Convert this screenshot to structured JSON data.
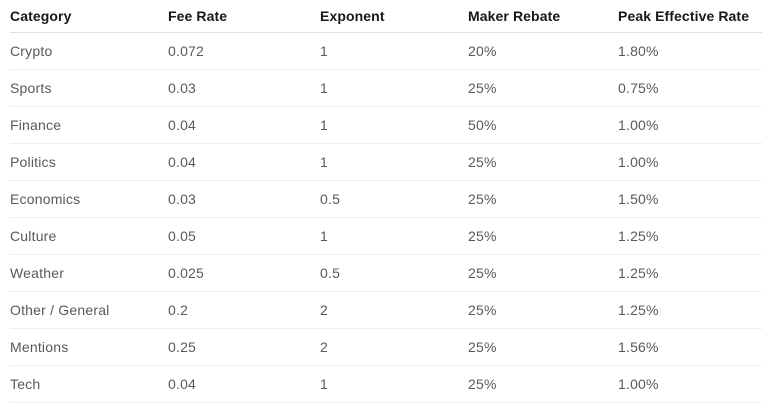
{
  "chart_data": {
    "type": "table",
    "columns": [
      "Category",
      "Fee Rate",
      "Exponent",
      "Maker Rebate",
      "Peak Effective Rate"
    ],
    "rows": [
      [
        "Crypto",
        "0.072",
        "1",
        "20%",
        "1.80%"
      ],
      [
        "Sports",
        "0.03",
        "1",
        "25%",
        "0.75%"
      ],
      [
        "Finance",
        "0.04",
        "1",
        "50%",
        "1.00%"
      ],
      [
        "Politics",
        "0.04",
        "1",
        "25%",
        "1.00%"
      ],
      [
        "Economics",
        "0.03",
        "0.5",
        "25%",
        "1.50%"
      ],
      [
        "Culture",
        "0.05",
        "1",
        "25%",
        "1.25%"
      ],
      [
        "Weather",
        "0.025",
        "0.5",
        "25%",
        "1.25%"
      ],
      [
        "Other / General",
        "0.2",
        "2",
        "25%",
        "1.25%"
      ],
      [
        "Mentions",
        "0.25",
        "2",
        "25%",
        "1.56%"
      ],
      [
        "Tech",
        "0.04",
        "1",
        "25%",
        "1.00%"
      ]
    ],
    "layout": {
      "grid": "horizontal-row-dividers",
      "legend": "none"
    }
  },
  "colors": {
    "background": "#ffffff",
    "header_text": "#15181e",
    "body_text": "#535a64",
    "header_divider": "#dfe2e6",
    "row_divider": "#ebedf0"
  }
}
